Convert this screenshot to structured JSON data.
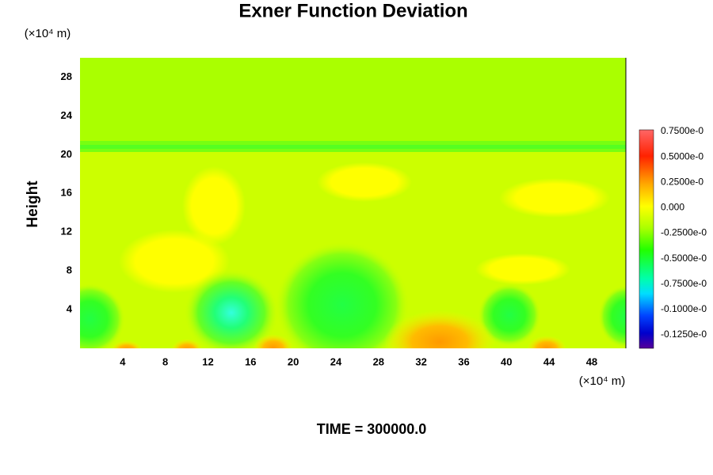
{
  "chart_data": {
    "type": "contour",
    "title": "Exner Function Deviation",
    "ylabel": "Height",
    "x_unit": "(×10⁴ m)",
    "y_unit": "(×10⁴ m)",
    "xlim": [
      0,
      51.2
    ],
    "ylim": [
      0,
      30
    ],
    "xticks": [
      4,
      8,
      12,
      16,
      20,
      24,
      28,
      32,
      36,
      40,
      44,
      48
    ],
    "yticks": [
      4,
      8,
      12,
      16,
      20,
      24,
      28
    ],
    "colorbar_labels": [
      "0.7500e-0",
      "0.5000e-0",
      "0.2500e-0",
      "0.000",
      "-0.2500e-0",
      "-0.5000e-0",
      "-0.7500e-0",
      "-0.1000e-0",
      "-0.1250e-0"
    ],
    "caption": "TIME = 300000.0"
  }
}
